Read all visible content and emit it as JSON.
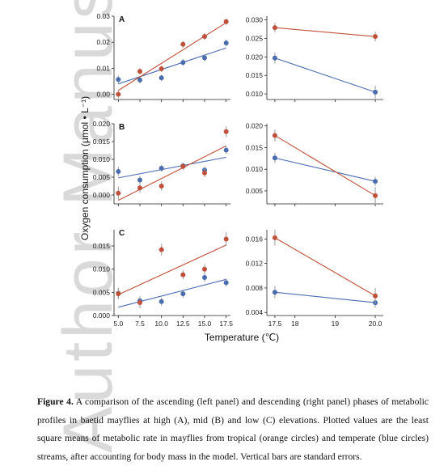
{
  "watermark": "Author Manuscript",
  "figure": {
    "ylabel": "Oxygen consumption (μmol • L⁻¹)",
    "xlabel": "Temperature (℃)"
  },
  "caption": {
    "label": "Figure 4.",
    "text": " A comparison of the ascending (left panel) and descending (right panel) phases of metabolic profiles in baetid mayflies at high (A), mid (B) and low (C) elevations. Plotted values are the least square means of metabolic rate in mayflies from tropical (orange circles) and temperate (blue circles) streams, after accounting for body mass in the model. Vertical bars are standard errors."
  },
  "colors": {
    "tropical": "#c0503a",
    "temperate": "#4a6db0"
  },
  "chart_data": [
    {
      "panel": "A",
      "side": "left",
      "type": "scatter",
      "xlim": [
        4.5,
        18
      ],
      "ylim": [
        -0.002,
        0.03
      ],
      "xticks": [
        5.0,
        7.5,
        10.0,
        12.5,
        15.0,
        17.5
      ],
      "yticks": [
        0.0,
        0.01,
        0.02,
        0.03
      ],
      "ytick_labels": [
        "0.00",
        "0.01",
        "0.02",
        "0.03"
      ],
      "series": [
        {
          "group": "tropical",
          "x": [
            5,
            7.5,
            10,
            12.5,
            15,
            17.5
          ],
          "y": [
            0.0,
            0.0088,
            0.0098,
            0.0192,
            0.0222,
            0.0279
          ],
          "err": [
            0.0015,
            0.0012,
            0.0012,
            0.0013,
            0.0013,
            0.0012
          ],
          "fit": [
            0.0015,
            0.0275
          ]
        },
        {
          "group": "temperate",
          "x": [
            5,
            7.5,
            10,
            12.5,
            15,
            17.5
          ],
          "y": [
            0.0057,
            0.0055,
            0.0063,
            0.0122,
            0.014,
            0.0197
          ],
          "err": [
            0.0015,
            0.0013,
            0.0013,
            0.0013,
            0.0013,
            0.0013
          ],
          "fit": [
            0.004,
            0.0178
          ]
        }
      ]
    },
    {
      "panel": "A",
      "side": "right",
      "type": "scatter",
      "xlim": [
        17.3,
        20.2
      ],
      "ylim": [
        0.0085,
        0.031
      ],
      "xticks": [
        17.5,
        18,
        19,
        20.0
      ],
      "yticks": [
        0.01,
        0.015,
        0.02,
        0.025,
        0.03
      ],
      "ytick_labels": [
        "0.010",
        "0.015",
        "0.020",
        "0.025",
        "0.030"
      ],
      "series": [
        {
          "group": "tropical",
          "x": [
            17.5,
            20
          ],
          "y": [
            0.0279,
            0.0255
          ],
          "err": [
            0.0013,
            0.0013
          ],
          "fit": [
            0.0279,
            0.0255
          ]
        },
        {
          "group": "temperate",
          "x": [
            17.5,
            20
          ],
          "y": [
            0.0197,
            0.0105
          ],
          "err": [
            0.0015,
            0.0017
          ],
          "fit": [
            0.0197,
            0.0105
          ]
        }
      ]
    },
    {
      "panel": "B",
      "side": "left",
      "type": "scatter",
      "xlim": [
        4.5,
        18
      ],
      "ylim": [
        -0.0025,
        0.02
      ],
      "xticks": [
        5.0,
        7.5,
        10.0,
        12.5,
        15.0,
        17.5
      ],
      "yticks": [
        0.0,
        0.005,
        0.01,
        0.015,
        0.02
      ],
      "ytick_labels": [
        "0.000",
        "0.005",
        "0.010",
        "0.015",
        "0.020"
      ],
      "series": [
        {
          "group": "tropical",
          "x": [
            5,
            7.5,
            10,
            12.5,
            15,
            17.5
          ],
          "y": [
            0.0005,
            0.002,
            0.0025,
            0.008,
            0.0062,
            0.0178
          ],
          "err": [
            0.0018,
            0.0013,
            0.0013,
            0.001,
            0.0012,
            0.0015
          ],
          "fit": [
            -0.0015,
            0.0138
          ]
        },
        {
          "group": "temperate",
          "x": [
            5,
            7.5,
            10,
            12.5,
            15,
            17.5
          ],
          "y": [
            0.0066,
            0.0042,
            0.0075,
            0.0082,
            0.007,
            0.0126
          ],
          "err": [
            0.0013,
            0.0012,
            0.001,
            0.0008,
            0.001,
            0.001
          ],
          "fit": [
            0.0048,
            0.0106
          ]
        }
      ]
    },
    {
      "panel": "B",
      "side": "right",
      "type": "scatter",
      "xlim": [
        17.3,
        20.2
      ],
      "ylim": [
        0.002,
        0.0205
      ],
      "xticks": [
        17.5,
        18,
        19,
        20.0
      ],
      "yticks": [
        0.005,
        0.01,
        0.015,
        0.02
      ],
      "ytick_labels": [
        "0.005",
        "0.010",
        "0.015",
        "0.020"
      ],
      "series": [
        {
          "group": "tropical",
          "x": [
            17.5,
            20
          ],
          "y": [
            0.0178,
            0.0039
          ],
          "err": [
            0.0014,
            0.002
          ],
          "fit": [
            0.0178,
            0.0039
          ]
        },
        {
          "group": "temperate",
          "x": [
            17.5,
            20
          ],
          "y": [
            0.0126,
            0.0072
          ],
          "err": [
            0.0012,
            0.001
          ],
          "fit": [
            0.0126,
            0.0072
          ]
        }
      ]
    },
    {
      "panel": "C",
      "side": "left",
      "type": "scatter",
      "xlim": [
        4.5,
        18
      ],
      "ylim": [
        0.0,
        0.0185
      ],
      "xticks": [
        5.0,
        7.5,
        10.0,
        12.5,
        15.0,
        17.5
      ],
      "yticks": [
        0.0,
        0.005,
        0.01,
        0.015
      ],
      "ytick_labels": [
        "0.000",
        "0.005",
        "0.010",
        "0.015"
      ],
      "series": [
        {
          "group": "tropical",
          "x": [
            5,
            7.5,
            10,
            12.5,
            15,
            17.5
          ],
          "y": [
            0.0047,
            0.0028,
            0.0142,
            0.0088,
            0.01,
            0.0165
          ],
          "err": [
            0.0012,
            0.0012,
            0.0013,
            0.001,
            0.0011,
            0.0015
          ],
          "fit": [
            0.0045,
            0.0152
          ]
        },
        {
          "group": "temperate",
          "x": [
            5,
            7.5,
            10,
            12.5,
            15,
            17.5
          ],
          "y": [
            0.0048,
            0.0032,
            0.003,
            0.0047,
            0.0082,
            0.0071
          ],
          "err": [
            0.0012,
            0.001,
            0.0009,
            0.0009,
            0.001,
            0.0009
          ],
          "fit": [
            0.0018,
            0.0078
          ]
        }
      ]
    },
    {
      "panel": "C",
      "side": "right",
      "type": "scatter",
      "xlim": [
        17.3,
        20.2
      ],
      "ylim": [
        0.0035,
        0.0175
      ],
      "xticks": [
        17.5,
        18,
        19,
        20.0
      ],
      "yticks": [
        0.004,
        0.008,
        0.012,
        0.016
      ],
      "ytick_labels": [
        "0.004",
        "0.008",
        "0.012",
        "0.016"
      ],
      "series": [
        {
          "group": "tropical",
          "x": [
            17.5,
            20
          ],
          "y": [
            0.0162,
            0.0067
          ],
          "err": [
            0.0013,
            0.0013
          ],
          "fit": [
            0.0162,
            0.0067
          ]
        },
        {
          "group": "temperate",
          "x": [
            17.5,
            20
          ],
          "y": [
            0.0073,
            0.0056
          ],
          "err": [
            0.001,
            0.0008
          ],
          "fit": [
            0.0073,
            0.0056
          ]
        }
      ]
    }
  ]
}
